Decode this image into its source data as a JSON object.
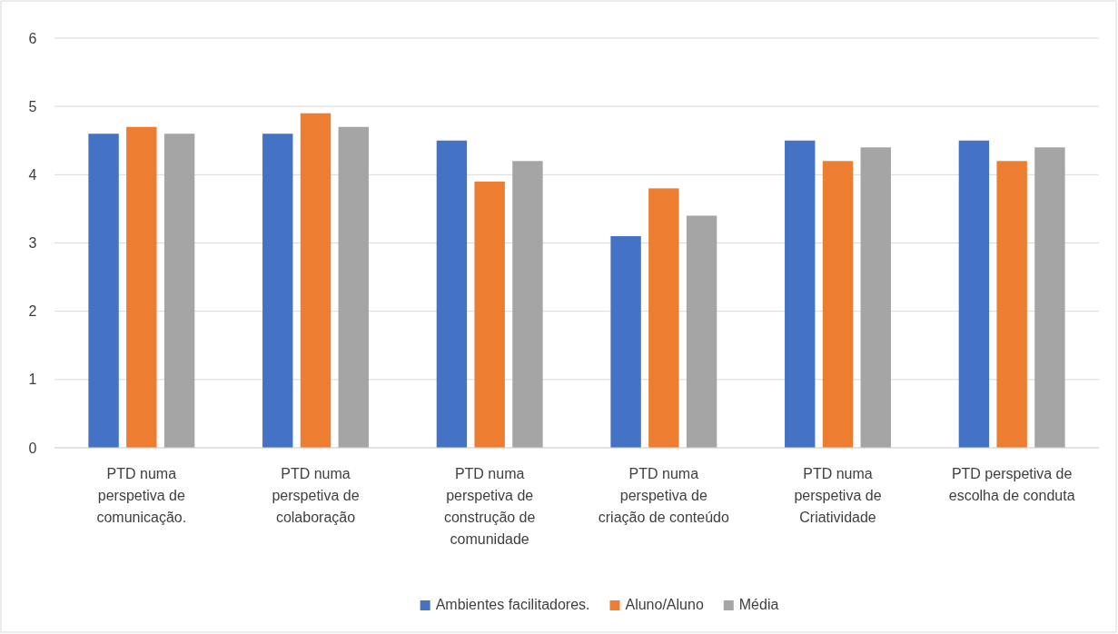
{
  "chart_data": {
    "type": "bar",
    "categories": [
      "PTD numa perspetiva de comunicação.",
      "PTD numa perspetiva de colaboração",
      "PTD numa perspetiva de construção de comunidade",
      "PTD numa perspetiva de criação de conteúdo",
      "PTD numa perspetiva de Criatividade",
      "PTD perspetiva de escolha de conduta"
    ],
    "series": [
      {
        "name": "Ambientes facilitadores.",
        "color": "#4472c4",
        "values": [
          4.6,
          4.6,
          4.5,
          3.1,
          4.5,
          4.5
        ]
      },
      {
        "name": "Aluno/Aluno",
        "color": "#ed7d31",
        "values": [
          4.7,
          4.9,
          3.9,
          3.8,
          4.2,
          4.2
        ]
      },
      {
        "name": "Média",
        "color": "#a5a5a5",
        "values": [
          4.6,
          4.7,
          4.2,
          3.4,
          4.4,
          4.4
        ]
      }
    ],
    "ylim": [
      0,
      6
    ],
    "yticks": [
      0,
      1,
      2,
      3,
      4,
      5,
      6
    ],
    "grid": "y",
    "legend": "bottom"
  }
}
